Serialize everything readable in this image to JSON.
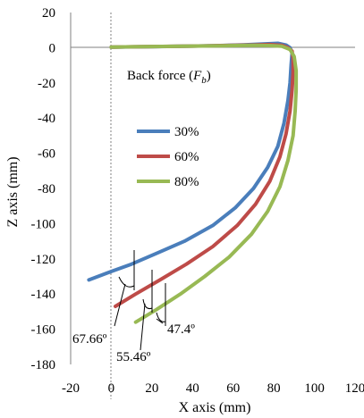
{
  "chart_data": {
    "type": "line",
    "xlabel": "X axis (mm)",
    "ylabel": "Z axis (mm)",
    "xlim": [
      -20,
      120
    ],
    "ylim": [
      -180,
      20
    ],
    "xticks": [
      "-20",
      "0",
      "20",
      "40",
      "60",
      "80",
      "100",
      "120"
    ],
    "yticks": [
      "20",
      "0",
      "-20",
      "-40",
      "-60",
      "-80",
      "-100",
      "-120",
      "-140",
      "-160",
      "-180"
    ],
    "legend_title": "Back force (",
    "legend_title_symbol": "F",
    "legend_title_sub": "b",
    "legend_title_close": ")",
    "legend_position": "center-left",
    "grid": false,
    "series": [
      {
        "name": "30%",
        "color": "#4a7ebb",
        "x": [
          -11,
          -2,
          10,
          22,
          36,
          50,
          61,
          70,
          77,
          82,
          85,
          87,
          88,
          88.5,
          89,
          88,
          86,
          82,
          76,
          65,
          50,
          35,
          20,
          5,
          0
        ],
        "y": [
          -132,
          -128,
          -123,
          -117,
          -110,
          -101,
          -91,
          -80,
          -68,
          -56,
          -43,
          -30,
          -20,
          -10,
          -3,
          0,
          1.5,
          2.5,
          2.2,
          1.6,
          1.1,
          0.8,
          0.6,
          0.4,
          0.3
        ]
      },
      {
        "name": "60%",
        "color": "#be4b48",
        "x": [
          2,
          12,
          24,
          37,
          50,
          62,
          71,
          78,
          83,
          86,
          88,
          89,
          89.5,
          89.5,
          89,
          87,
          84,
          78,
          70,
          55,
          40,
          25,
          10,
          0
        ],
        "y": [
          -147,
          -140,
          -132,
          -123,
          -113,
          -101,
          -89,
          -76,
          -62,
          -49,
          -36,
          -24,
          -14,
          -6,
          -2,
          0,
          1.3,
          1.8,
          1.5,
          1.2,
          0.9,
          0.7,
          0.5,
          0.3
        ]
      },
      {
        "name": "80%",
        "color": "#98b954",
        "x": [
          12,
          22,
          34,
          46,
          58,
          69,
          77,
          83,
          87,
          89.5,
          90.5,
          91,
          91,
          90,
          88,
          84,
          78,
          70,
          55,
          40,
          25,
          10,
          0
        ],
        "y": [
          -156,
          -149,
          -140,
          -130,
          -119,
          -106,
          -93,
          -79,
          -64,
          -50,
          -36,
          -24,
          -13,
          -5,
          -1,
          0.8,
          1.2,
          1.3,
          1.1,
          0.9,
          0.7,
          0.5,
          0.3
        ]
      }
    ],
    "annotations": [
      "67.66º",
      "55.46º",
      "47.4º"
    ]
  }
}
